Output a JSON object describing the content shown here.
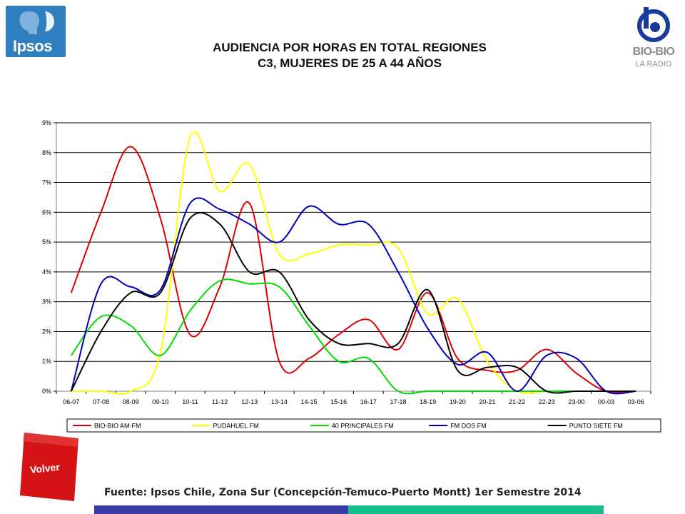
{
  "logos": {
    "ipsos": "Ipsos",
    "bio_bio": "BIO-BIO",
    "bio_bio_sub": "LA RADIO"
  },
  "title": {
    "line1": "AUDIENCIA POR HORAS EN TOTAL REGIONES",
    "line2": "C3, MUJERES DE 25 A 44 AÑOS"
  },
  "chart_data": {
    "type": "line",
    "title": "AUDIENCIA POR HORAS EN TOTAL REGIONES C3, MUJERES DE 25 A 44 AÑOS",
    "xlabel": "",
    "ylabel": "",
    "ylim": [
      0,
      9
    ],
    "yticks": [
      "0%",
      "1%",
      "2%",
      "3%",
      "4%",
      "5%",
      "6%",
      "7%",
      "8%",
      "9%"
    ],
    "grid": true,
    "legend_position": "bottom",
    "categories": [
      "06-07",
      "07-08",
      "08-09",
      "09-10",
      "10-11",
      "11-12",
      "12-13",
      "13-14",
      "14-15",
      "15-16",
      "16-17",
      "17-18",
      "18-19",
      "19-20",
      "20-21",
      "21-22",
      "22-23",
      "23-00",
      "00-03",
      "03-06"
    ],
    "series": [
      {
        "name": "BIO-BIO AM-FM",
        "color": "#dd0000",
        "values": [
          3.3,
          6.0,
          8.2,
          5.8,
          1.9,
          3.5,
          6.3,
          1.0,
          1.1,
          1.9,
          2.4,
          1.4,
          3.3,
          1.1,
          0.7,
          0.7,
          1.4,
          0.6,
          0.0,
          0.0
        ]
      },
      {
        "name": "PUDAHUEL FM",
        "color": "#ffff00",
        "values": [
          0.0,
          0.0,
          0.0,
          1.3,
          8.5,
          6.7,
          7.6,
          4.6,
          4.6,
          4.9,
          4.9,
          4.8,
          2.6,
          3.1,
          1.0,
          0.0,
          0.0,
          0.0,
          0.0,
          0.0
        ]
      },
      {
        "name": "40 PRINCIPALES FM",
        "color": "#00dd00",
        "values": [
          1.2,
          2.5,
          2.2,
          1.2,
          2.7,
          3.7,
          3.6,
          3.5,
          2.2,
          1.0,
          1.1,
          0.0,
          0.0,
          0.0,
          0.0,
          0.0,
          0.0,
          0.0,
          0.0,
          0.0
        ]
      },
      {
        "name": "FM DOS FM",
        "color": "#0000bb",
        "values": [
          0.0,
          3.6,
          3.5,
          3.4,
          6.3,
          6.1,
          5.6,
          5.0,
          6.2,
          5.6,
          5.6,
          4.0,
          2.1,
          0.9,
          1.3,
          0.0,
          1.2,
          1.1,
          0.0,
          0.0
        ]
      },
      {
        "name": "PUNTO SIETE FM",
        "color": "#000000",
        "values": [
          0.0,
          2.0,
          3.3,
          3.3,
          5.8,
          5.6,
          4.0,
          4.0,
          2.4,
          1.6,
          1.6,
          1.6,
          3.4,
          0.7,
          0.8,
          0.8,
          0.0,
          0.0,
          0.0,
          0.0
        ]
      }
    ]
  },
  "volver": {
    "label": "Volver"
  },
  "footer": {
    "source": "Fuente: Ipsos Chile, Zona Sur (Concepción-Temuco-Puerto Montt) 1er Semestre 2014"
  }
}
